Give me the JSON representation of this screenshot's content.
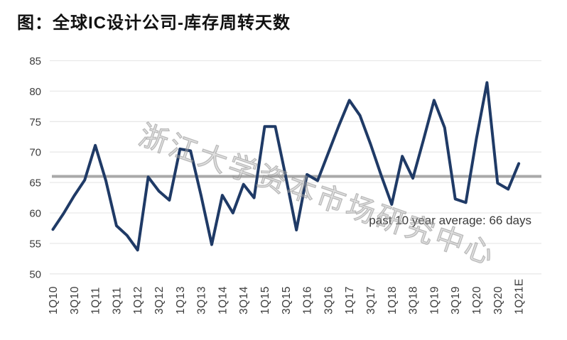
{
  "title": "图：全球IC设计公司-库存周转天数",
  "watermark": "浙江大学资本市场研究中心",
  "annotation": "past 10 year average: 66 days",
  "colors": {
    "line": "#1f3a66",
    "average_line": "#a9a9a9",
    "grid": "#e9e9e9",
    "axis_text": "#3c3c3c",
    "title_text": "#111111",
    "annotation_text": "#3a3a3a"
  },
  "chart_data": {
    "type": "line",
    "title": "全球IC设计公司-库存周转天数",
    "x": [
      "1Q10",
      "2Q10",
      "3Q10",
      "4Q10",
      "1Q11",
      "2Q11",
      "3Q11",
      "4Q11",
      "1Q12",
      "2Q12",
      "3Q12",
      "4Q12",
      "1Q13",
      "2Q13",
      "3Q13",
      "4Q13",
      "1Q14",
      "2Q14",
      "3Q14",
      "4Q14",
      "1Q15",
      "2Q15",
      "3Q15",
      "4Q15",
      "1Q16",
      "2Q16",
      "3Q16",
      "4Q16",
      "1Q17",
      "2Q17",
      "3Q17",
      "4Q17",
      "1Q18",
      "2Q18",
      "3Q18",
      "4Q18",
      "1Q19",
      "2Q19",
      "3Q19",
      "4Q19",
      "1Q20",
      "2Q20",
      "3Q20",
      "4Q20",
      "1Q21E"
    ],
    "values": [
      57.3,
      59.9,
      62.8,
      65.4,
      71.1,
      65.3,
      57.9,
      56.3,
      53.9,
      65.9,
      63.6,
      62.1,
      70.5,
      70.2,
      62.8,
      54.8,
      62.9,
      60.0,
      64.7,
      62.5,
      74.2,
      74.2,
      65.9,
      57.2,
      66.3,
      65.3,
      69.8,
      74.3,
      78.5,
      76.0,
      71.3,
      66.2,
      61.4,
      69.3,
      65.7,
      72.0,
      78.5,
      74.0,
      62.3,
      61.7,
      72.2,
      81.4,
      64.9,
      63.9,
      68.1
    ],
    "x_ticks_shown": [
      "1Q10",
      "3Q10",
      "1Q11",
      "3Q11",
      "1Q12",
      "3Q12",
      "1Q13",
      "3Q13",
      "1Q14",
      "3Q14",
      "1Q15",
      "3Q15",
      "1Q16",
      "3Q16",
      "1Q17",
      "3Q17",
      "1Q18",
      "3Q18",
      "1Q19",
      "3Q19",
      "1Q20",
      "3Q20",
      "1Q21E"
    ],
    "yticks": [
      50,
      55,
      60,
      65,
      70,
      75,
      80,
      85
    ],
    "ylim": [
      50,
      85
    ],
    "grid": "horizontal",
    "legend": "none",
    "average_line": {
      "value": 66,
      "label": "past 10 year average: 66 days"
    }
  }
}
